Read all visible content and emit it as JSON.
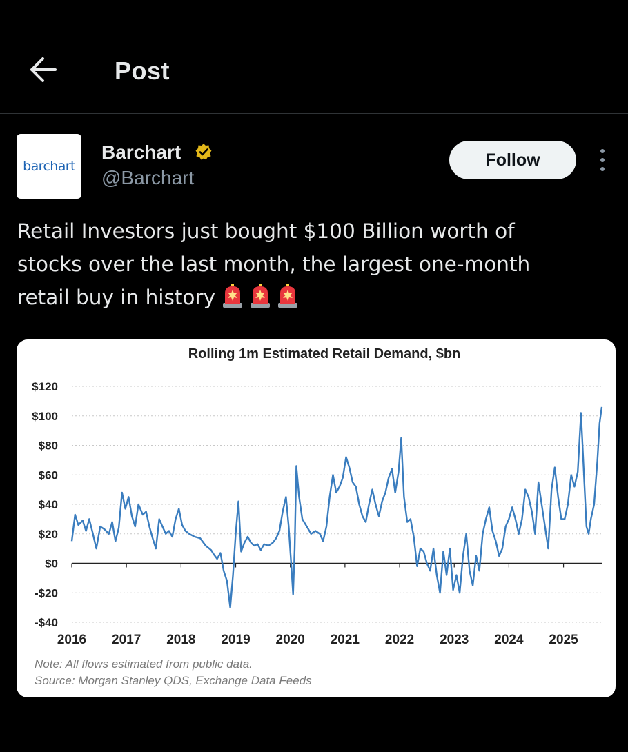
{
  "header": {
    "title": "Post",
    "back_icon": "arrow-left-icon"
  },
  "author": {
    "name": "Barchart",
    "handle": "@Barchart",
    "avatar_text": "barchart",
    "verified_icon": "verified-badge-icon",
    "verified_color": "#e2b719"
  },
  "follow_label": "Follow",
  "more_icon": "more-vertical-icon",
  "post": {
    "lines": [
      "Retail Investors just bought $100 Billion worth of",
      "stocks over the last month, the largest one-month",
      "retail buy in history"
    ],
    "emoji_icons": [
      "police-light-icon",
      "police-light-icon",
      "police-light-icon"
    ]
  },
  "colors": {
    "background": "#000000",
    "text": "#e7e9ea",
    "muted": "#8b98a5",
    "line": "#3a7dbf"
  },
  "chart_data": {
    "type": "line",
    "title": "Rolling 1m Estimated Retail Demand, $bn",
    "ylim": [
      -40,
      120
    ],
    "ytick_labels": [
      "$120",
      "$100",
      "$80",
      "$60",
      "$40",
      "$20",
      "$0",
      "-$20",
      "-$40"
    ],
    "ytick_values": [
      120,
      100,
      80,
      60,
      40,
      20,
      0,
      -20,
      -40
    ],
    "xlim": [
      2016,
      2025.7
    ],
    "xtick_labels": [
      "2016",
      "2017",
      "2018",
      "2019",
      "2020",
      "2021",
      "2022",
      "2023",
      "2024",
      "2025"
    ],
    "xtick_values": [
      2016,
      2017,
      2018,
      2019,
      2020,
      2021,
      2022,
      2023,
      2024,
      2025
    ],
    "grid": "horizontal dotted",
    "notes": [
      "Note:  All flows estimated from public data.",
      "Source: Morgan Stanley QDS, Exchange Data Feeds"
    ],
    "series": [
      {
        "color": "#3a7dbf",
        "points": [
          [
            2016.0,
            15
          ],
          [
            2016.06,
            33
          ],
          [
            2016.12,
            26
          ],
          [
            2016.2,
            29
          ],
          [
            2016.26,
            22
          ],
          [
            2016.32,
            30
          ],
          [
            2016.38,
            21
          ],
          [
            2016.45,
            10
          ],
          [
            2016.52,
            25
          ],
          [
            2016.6,
            23
          ],
          [
            2016.68,
            20
          ],
          [
            2016.74,
            28
          ],
          [
            2016.8,
            15
          ],
          [
            2016.86,
            24
          ],
          [
            2016.92,
            48
          ],
          [
            2016.98,
            37
          ],
          [
            2017.04,
            45
          ],
          [
            2017.1,
            32
          ],
          [
            2017.16,
            25
          ],
          [
            2017.22,
            40
          ],
          [
            2017.3,
            33
          ],
          [
            2017.36,
            35
          ],
          [
            2017.42,
            25
          ],
          [
            2017.48,
            17
          ],
          [
            2017.54,
            10
          ],
          [
            2017.6,
            30
          ],
          [
            2017.66,
            25
          ],
          [
            2017.72,
            20
          ],
          [
            2017.78,
            22
          ],
          [
            2017.84,
            18
          ],
          [
            2017.9,
            30
          ],
          [
            2017.96,
            37
          ],
          [
            2018.02,
            26
          ],
          [
            2018.08,
            22
          ],
          [
            2018.15,
            20
          ],
          [
            2018.25,
            18
          ],
          [
            2018.35,
            17
          ],
          [
            2018.45,
            12
          ],
          [
            2018.55,
            9
          ],
          [
            2018.6,
            6
          ],
          [
            2018.66,
            3
          ],
          [
            2018.72,
            7
          ],
          [
            2018.78,
            -5
          ],
          [
            2018.84,
            -12
          ],
          [
            2018.9,
            -30
          ],
          [
            2018.95,
            -8
          ],
          [
            2019.0,
            20
          ],
          [
            2019.05,
            42
          ],
          [
            2019.1,
            8
          ],
          [
            2019.16,
            14
          ],
          [
            2019.22,
            18
          ],
          [
            2019.28,
            14
          ],
          [
            2019.34,
            12
          ],
          [
            2019.4,
            13
          ],
          [
            2019.46,
            9
          ],
          [
            2019.52,
            13
          ],
          [
            2019.6,
            12
          ],
          [
            2019.68,
            14
          ],
          [
            2019.74,
            17
          ],
          [
            2019.8,
            22
          ],
          [
            2019.86,
            35
          ],
          [
            2019.92,
            45
          ],
          [
            2019.97,
            25
          ],
          [
            2020.02,
            -3
          ],
          [
            2020.05,
            -21
          ],
          [
            2020.08,
            10
          ],
          [
            2020.11,
            66
          ],
          [
            2020.16,
            45
          ],
          [
            2020.22,
            30
          ],
          [
            2020.3,
            25
          ],
          [
            2020.38,
            20
          ],
          [
            2020.46,
            22
          ],
          [
            2020.54,
            20
          ],
          [
            2020.6,
            15
          ],
          [
            2020.66,
            25
          ],
          [
            2020.72,
            45
          ],
          [
            2020.78,
            60
          ],
          [
            2020.84,
            48
          ],
          [
            2020.9,
            52
          ],
          [
            2020.96,
            58
          ],
          [
            2021.02,
            72
          ],
          [
            2021.08,
            65
          ],
          [
            2021.14,
            55
          ],
          [
            2021.2,
            52
          ],
          [
            2021.26,
            40
          ],
          [
            2021.32,
            32
          ],
          [
            2021.38,
            28
          ],
          [
            2021.44,
            40
          ],
          [
            2021.5,
            50
          ],
          [
            2021.56,
            40
          ],
          [
            2021.62,
            32
          ],
          [
            2021.68,
            42
          ],
          [
            2021.74,
            48
          ],
          [
            2021.8,
            58
          ],
          [
            2021.86,
            64
          ],
          [
            2021.92,
            48
          ],
          [
            2021.98,
            62
          ],
          [
            2022.03,
            85
          ],
          [
            2022.08,
            45
          ],
          [
            2022.14,
            28
          ],
          [
            2022.2,
            30
          ],
          [
            2022.26,
            18
          ],
          [
            2022.32,
            -2
          ],
          [
            2022.38,
            10
          ],
          [
            2022.44,
            8
          ],
          [
            2022.5,
            0
          ],
          [
            2022.56,
            -5
          ],
          [
            2022.62,
            10
          ],
          [
            2022.68,
            -8
          ],
          [
            2022.74,
            -20
          ],
          [
            2022.8,
            8
          ],
          [
            2022.86,
            -8
          ],
          [
            2022.92,
            10
          ],
          [
            2022.98,
            -18
          ],
          [
            2023.04,
            -8
          ],
          [
            2023.1,
            -20
          ],
          [
            2023.16,
            5
          ],
          [
            2023.22,
            20
          ],
          [
            2023.28,
            -5
          ],
          [
            2023.34,
            -15
          ],
          [
            2023.4,
            5
          ],
          [
            2023.46,
            -5
          ],
          [
            2023.52,
            20
          ],
          [
            2023.58,
            30
          ],
          [
            2023.64,
            38
          ],
          [
            2023.7,
            22
          ],
          [
            2023.76,
            15
          ],
          [
            2023.82,
            5
          ],
          [
            2023.88,
            10
          ],
          [
            2023.94,
            25
          ],
          [
            2024.0,
            30
          ],
          [
            2024.06,
            38
          ],
          [
            2024.12,
            30
          ],
          [
            2024.18,
            20
          ],
          [
            2024.24,
            30
          ],
          [
            2024.3,
            50
          ],
          [
            2024.36,
            45
          ],
          [
            2024.42,
            35
          ],
          [
            2024.48,
            20
          ],
          [
            2024.54,
            55
          ],
          [
            2024.6,
            40
          ],
          [
            2024.66,
            25
          ],
          [
            2024.72,
            10
          ],
          [
            2024.78,
            50
          ],
          [
            2024.84,
            65
          ],
          [
            2024.9,
            45
          ],
          [
            2024.96,
            30
          ],
          [
            2025.02,
            30
          ],
          [
            2025.08,
            40
          ],
          [
            2025.14,
            60
          ],
          [
            2025.2,
            52
          ],
          [
            2025.26,
            62
          ],
          [
            2025.32,
            102
          ],
          [
            2025.38,
            55
          ],
          [
            2025.42,
            25
          ],
          [
            2025.46,
            20
          ],
          [
            2025.5,
            30
          ],
          [
            2025.56,
            40
          ],
          [
            2025.62,
            70
          ],
          [
            2025.66,
            95
          ],
          [
            2025.7,
            106
          ]
        ]
      }
    ]
  }
}
